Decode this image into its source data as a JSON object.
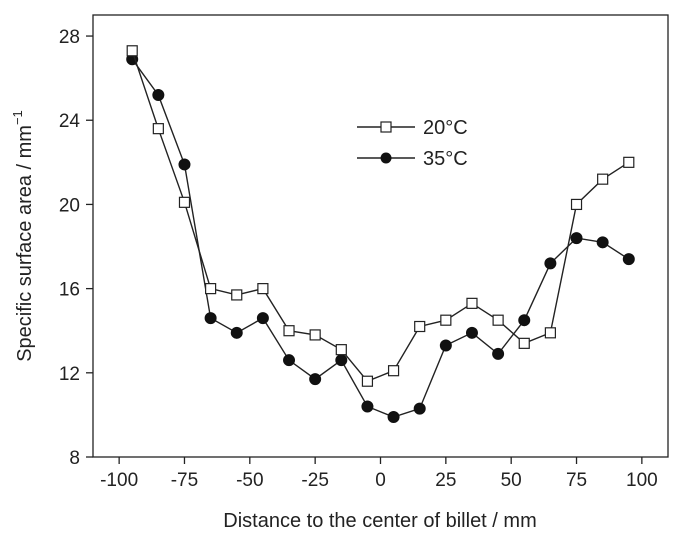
{
  "chart_data": {
    "type": "line",
    "xlabel": "Distance to the center of billet / mm",
    "ylabel": "Specific surface area / mm",
    "ylabel_superscript": "−1",
    "xlim": [
      -110,
      110
    ],
    "ylim": [
      8,
      29
    ],
    "xticks": [
      -100,
      -75,
      -50,
      -25,
      0,
      25,
      50,
      75,
      100
    ],
    "yticks": [
      8,
      12,
      16,
      20,
      24,
      28
    ],
    "grid": false,
    "legend_position": "upper-center",
    "x": [
      -95,
      -85,
      -75,
      -65,
      -55,
      -45,
      -35,
      -25,
      -15,
      -5,
      5,
      15,
      25,
      35,
      45,
      55,
      65,
      75,
      85,
      95
    ],
    "series": [
      {
        "name": "20°C",
        "marker": "open-square",
        "values": [
          27.3,
          23.6,
          20.1,
          16.0,
          15.7,
          16.0,
          14.0,
          13.8,
          13.1,
          11.6,
          12.1,
          14.2,
          14.5,
          15.3,
          14.5,
          13.4,
          13.9,
          20.0,
          21.2,
          22.0
        ]
      },
      {
        "name": "35°C",
        "marker": "filled-circle",
        "values": [
          26.9,
          25.2,
          21.9,
          14.6,
          13.9,
          14.6,
          12.6,
          11.7,
          12.6,
          10.4,
          9.9,
          10.3,
          13.3,
          13.9,
          12.9,
          14.5,
          17.2,
          18.4,
          18.2,
          17.4
        ]
      }
    ]
  }
}
